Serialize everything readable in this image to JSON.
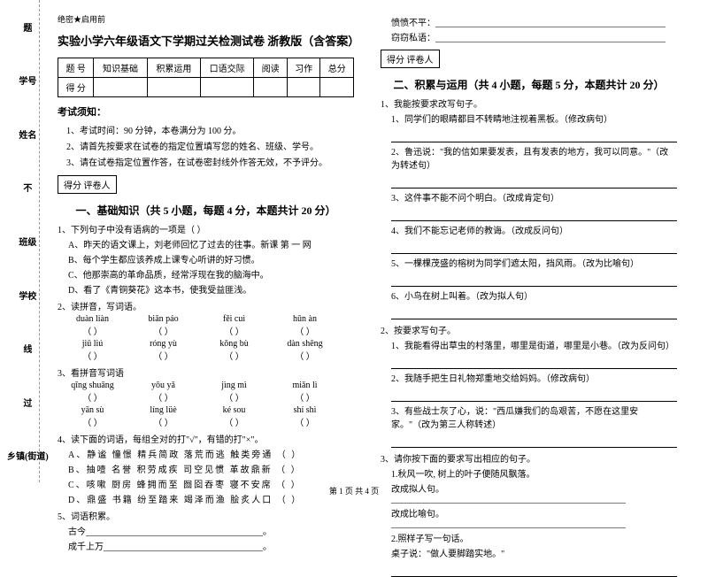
{
  "margin": {
    "l1": "学号",
    "l2": "姓名",
    "l3": "班级",
    "l4": "学校",
    "l5": "乡镇(街道)",
    "dash1": "剪",
    "dash2": "此",
    "dash3": "不",
    "dash4": "过",
    "dash5": "线",
    "dash6": "题"
  },
  "secret": "绝密★启用前",
  "title": "实验小学六年级语文下学期过关检测试卷  浙教版（含答案）",
  "scoreTable": {
    "headers": [
      "题  号",
      "知识基础",
      "积累运用",
      "口语交际",
      "阅读",
      "习作",
      "总分"
    ],
    "row": "得  分"
  },
  "noticeTitle": "考试须知：",
  "notices": [
    "1、考试时间：90 分钟，本卷满分为 100 分。",
    "2、请首先按要求在试卷的指定位置填写您的姓名、班级、学号。",
    "3、请在试卷指定位置作答，在试卷密封线外作答无效，不予评分。"
  ],
  "scoreBox": "得分    评卷人",
  "section1": {
    "title": "一、基础知识（共 5 小题，每题 4 分，本题共计 20 分）",
    "q1": "1、下列句子中没有语病的一项是（    ）",
    "q1a": "A、昨天的语文课上，刘老师回忆了过去的往事。新课    第    一    网",
    "q1b": "B、每个学生都应该养成上课专心听讲的好习惯。",
    "q1c": "C、他那崇高的革命品质，经常浮现在我的脑海中。",
    "q1d": "D、看了《青铜葵花》这本书，使我受益匪浅。",
    "q2": "2、读拼音，写词语。",
    "p2": [
      [
        "duàn  liàn",
        "biān páo",
        "fěi cuì",
        "hūn àn"
      ],
      [
        "jiǔ liú",
        "róng yù",
        "kǒng bù",
        "dàn shēng"
      ]
    ],
    "q3": "3、看拼音写词语",
    "p3": [
      [
        "qīng shuāng",
        "yōu yǎ",
        "jìng mì",
        "miǎn lì"
      ],
      [
        "yān sù",
        "líng lüè",
        "ké sou",
        "shí shì"
      ]
    ],
    "q4": "4、读下面的词语，每组全对的打\"√\"，有错的打\"×\"。",
    "q4a": "A、静谧    憧憬    精兵简政    落荒而逃    触类旁通        （    ）",
    "q4b": "B、抽噎    名誉    积劳成疾    司空见惯    革故鼎新        （    ）",
    "q4c": "C、咳嗽    厨房    蜂拥而至    囫囵吞枣    寝不安席        （    ）",
    "q4d": "D、鼎盛    书籍    纷至踏来    竭泽而渔    脍炙人口        （    ）",
    "q5": "5、词语积累。",
    "q5a": "古今________________________________________。",
    "q5b": "成千上万____________________________________。"
  },
  "rightTop": {
    "l1": "愤愤不平：____________________________________________________",
    "l2": "窃窃私语：____________________________________________________"
  },
  "section2": {
    "title": "二、积累与运用（共 4 小题，每题 5 分，本题共计 20 分）",
    "q1": "1、我能按要求改写句子。",
    "q1s": [
      "1、同学们的眼睛都目不转睛地注视着黑板。（修改病句）",
      "2、鲁迅说：\"我的信如果要发表，且有发表的地方，我可以同意。\"（改为转述句）",
      "3、这件事不能不问个明白。（改成肯定句）",
      "4、我们不能忘记老师的教诲。（改成反问句）",
      "5、一棵棵茂盛的榕树为同学们遮太阳，挡风雨。（改为比喻句）",
      "6、小鸟在树上叫着。（改为拟人句）"
    ],
    "q2": "2、按要求写句子。",
    "q2s": [
      "1、我能看得出草虫的村落里，哪里是街道，哪里是小巷。（改为反问句）",
      "2、我随手把生日礼物郑重地交给妈妈。（修改病句）",
      "3、有些战士灰了心，说：\"西瓜嫌我们的岛艰苦，不愿在这里安家。\"（改为第三人称转述）"
    ],
    "q3": "3、请你按下面的要求写出相应的句子。",
    "q3s": [
      "1.秋风一吹, 树上的叶子便随风飘落。",
      "改成拟人句。_____________________________________________________",
      "改成比喻句。_____________________________________________________",
      "2.照样子写一句话。",
      "    桌子说：\"做人要脚踏实地。\""
    ]
  },
  "footer": "第 1 页  共 4 页"
}
